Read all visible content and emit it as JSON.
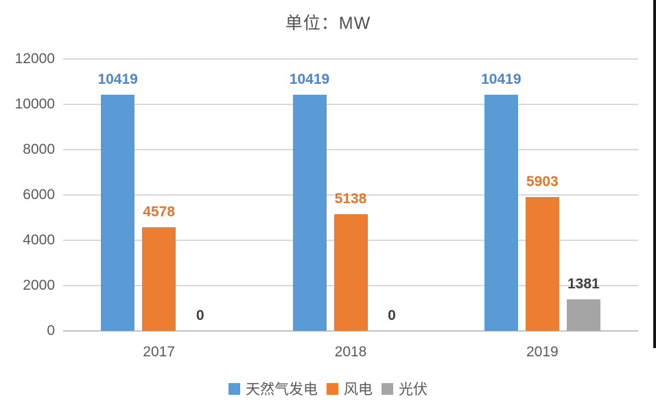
{
  "chart_data": {
    "type": "bar",
    "title": "单位：MW",
    "categories": [
      "2017",
      "2018",
      "2019"
    ],
    "series": [
      {
        "key": "natural-gas-power",
        "name": "天然气发电",
        "color": "#5B9BD5",
        "label_color": "#4D86C8",
        "values": [
          10419,
          10419,
          10419
        ]
      },
      {
        "key": "wind-power",
        "name": "风电",
        "color": "#ED7D31",
        "label_color": "#E2762B",
        "values": [
          4578,
          5138,
          5903
        ]
      },
      {
        "key": "solar-pv",
        "name": "光伏",
        "color": "#A5A5A5",
        "label_color": "#3F3F3F",
        "values": [
          0,
          0,
          1381
        ]
      }
    ],
    "ylim": [
      0,
      12000
    ],
    "ytick_interval": 2000,
    "yticks": [
      0,
      2000,
      4000,
      6000,
      8000,
      10000,
      12000
    ],
    "grid": true,
    "bar_value_labels": true,
    "legend_position": "bottom",
    "gridline_color": "#D9D9D9",
    "axis_text_color": "#595959"
  }
}
